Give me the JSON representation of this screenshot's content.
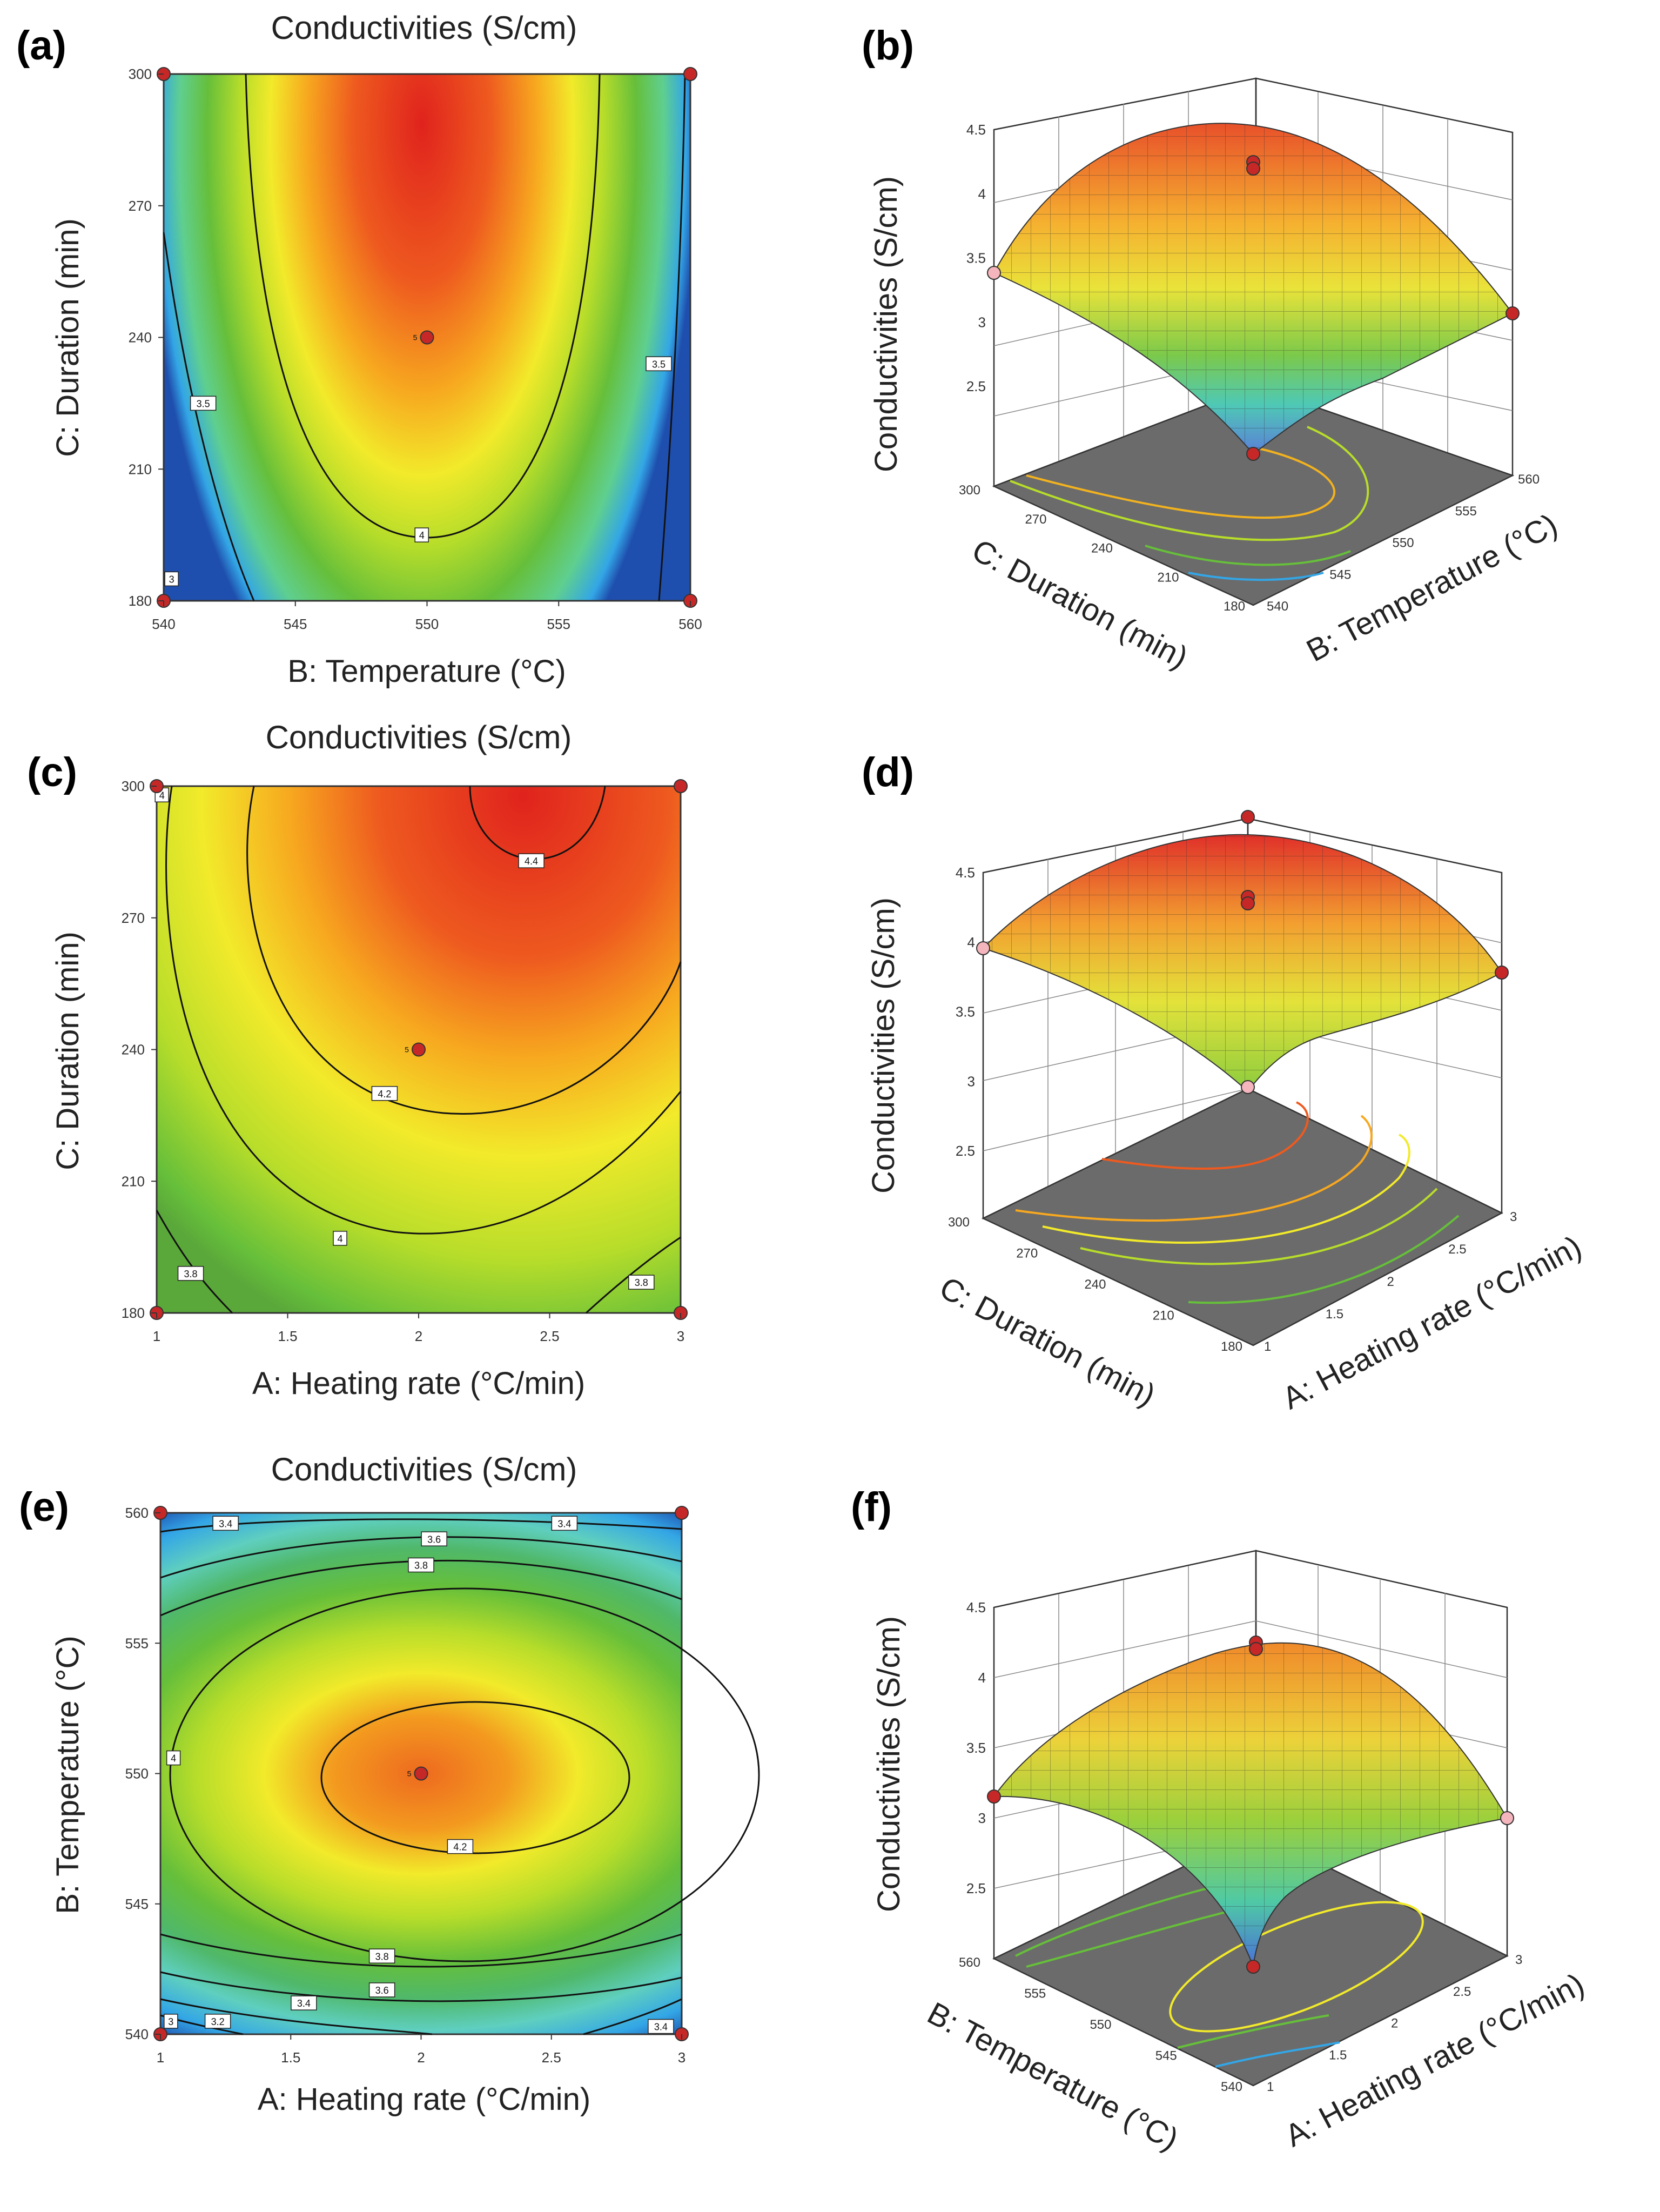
{
  "colors": {
    "scale": [
      "#1f4fae",
      "#33a6e6",
      "#5fcf8f",
      "#66bf3a",
      "#b7dd2a",
      "#f2ea2a",
      "#f7a81f",
      "#ee5a1f",
      "#e0231d"
    ],
    "floor": "#6b6b6b",
    "design_point": "#c62828",
    "design_point_light": "#f4b6bc",
    "contour": "#111111"
  },
  "chart_data": [
    {
      "type": "contour",
      "panel_label": "(a)",
      "title": "Conductivities (S/cm)",
      "xlabel": "B: Temperature (°C)",
      "ylabel": "C: Duration (min)",
      "x_ticks": [
        "540",
        "545",
        "550",
        "555",
        "560"
      ],
      "y_ticks": [
        "180",
        "210",
        "240",
        "270",
        "300"
      ],
      "xlim": [
        540,
        560
      ],
      "ylim": [
        180,
        300
      ],
      "contour_labels": [
        {
          "text": "3",
          "x": 540.3,
          "y": 185
        },
        {
          "text": "3.5",
          "x": 541.5,
          "y": 225
        },
        {
          "text": "3.5",
          "x": 558.8,
          "y": 234
        },
        {
          "text": "4",
          "x": 549.8,
          "y": 195
        }
      ],
      "center_label": "5",
      "design_points": [
        {
          "x": 540,
          "y": 180
        },
        {
          "x": 560,
          "y": 180
        },
        {
          "x": 540,
          "y": 300
        },
        {
          "x": 560,
          "y": 300
        },
        {
          "x": 550,
          "y": 240
        }
      ]
    },
    {
      "type": "surface",
      "panel_label": "(b)",
      "zlabel": "Conductivities (S/cm)",
      "z_ticks": [
        "2.5",
        "3",
        "3.5",
        "4",
        "4.5"
      ],
      "xlabel": "C: Duration (min)",
      "x_ticks": [
        "300",
        "270",
        "240",
        "210",
        "180"
      ],
      "ylabel": "B: Temperature (°C)",
      "y_ticks": [
        "540",
        "545",
        "550",
        "555",
        "560"
      ]
    },
    {
      "type": "contour",
      "panel_label": "(c)",
      "title": "Conductivities (S/cm)",
      "xlabel": "A: Heating rate (°C/min)",
      "ylabel": "C: Duration (min)",
      "x_ticks": [
        "1",
        "1.5",
        "2",
        "2.5",
        "3"
      ],
      "y_ticks": [
        "180",
        "210",
        "240",
        "270",
        "300"
      ],
      "xlim": [
        1,
        3
      ],
      "ylim": [
        180,
        300
      ],
      "contour_labels": [
        {
          "text": "4",
          "x": 1.02,
          "y": 298
        },
        {
          "text": "4.4",
          "x": 2.43,
          "y": 283
        },
        {
          "text": "4.2",
          "x": 1.87,
          "y": 230
        },
        {
          "text": "4",
          "x": 1.7,
          "y": 197
        },
        {
          "text": "3.8",
          "x": 1.13,
          "y": 189
        },
        {
          "text": "3.8",
          "x": 2.85,
          "y": 187
        }
      ],
      "center_label": "5",
      "design_points": [
        {
          "x": 1,
          "y": 180
        },
        {
          "x": 3,
          "y": 180
        },
        {
          "x": 1,
          "y": 300
        },
        {
          "x": 3,
          "y": 300
        },
        {
          "x": 2,
          "y": 240
        }
      ]
    },
    {
      "type": "surface",
      "panel_label": "(d)",
      "zlabel": "Conductivities (S/cm)",
      "z_ticks": [
        "2.5",
        "3",
        "3.5",
        "4",
        "4.5"
      ],
      "xlabel": "C: Duration (min)",
      "x_ticks": [
        "300",
        "270",
        "240",
        "210",
        "180"
      ],
      "ylabel": "A: Heating rate (°C/min)",
      "y_ticks": [
        "1",
        "1.5",
        "2",
        "2.5",
        "3"
      ]
    },
    {
      "type": "contour",
      "panel_label": "(e)",
      "title": "Conductivities (S/cm)",
      "xlabel": "A: Heating rate (°C/min)",
      "ylabel": "B: Temperature (°C)",
      "x_ticks": [
        "1",
        "1.5",
        "2",
        "2.5",
        "3"
      ],
      "y_ticks": [
        "540",
        "545",
        "550",
        "555",
        "560"
      ],
      "xlim": [
        1,
        3
      ],
      "ylim": [
        540,
        560
      ],
      "contour_labels": [
        {
          "text": "3.4",
          "x": 1.25,
          "y": 559.6
        },
        {
          "text": "3.4",
          "x": 2.55,
          "y": 559.6
        },
        {
          "text": "3.6",
          "x": 2.05,
          "y": 559.0
        },
        {
          "text": "3.8",
          "x": 2.0,
          "y": 558.0
        },
        {
          "text": "4",
          "x": 1.05,
          "y": 550.6
        },
        {
          "text": "4.2",
          "x": 2.15,
          "y": 547.2
        },
        {
          "text": "3.8",
          "x": 1.85,
          "y": 543.0
        },
        {
          "text": "3.6",
          "x": 1.85,
          "y": 541.7
        },
        {
          "text": "3.4",
          "x": 1.55,
          "y": 541.2
        },
        {
          "text": "3.2",
          "x": 1.22,
          "y": 540.5
        },
        {
          "text": "3",
          "x": 1.04,
          "y": 540.5
        },
        {
          "text": "3.4",
          "x": 2.92,
          "y": 540.3
        }
      ],
      "center_label": "5",
      "design_points": [
        {
          "x": 1,
          "y": 540
        },
        {
          "x": 3,
          "y": 540
        },
        {
          "x": 1,
          "y": 560
        },
        {
          "x": 3,
          "y": 560
        },
        {
          "x": 2,
          "y": 550
        }
      ]
    },
    {
      "type": "surface",
      "panel_label": "(f)",
      "zlabel": "Conductivities (S/cm)",
      "z_ticks": [
        "2.5",
        "3",
        "3.5",
        "4",
        "4.5"
      ],
      "xlabel": "B: Temperature (°C)",
      "x_ticks": [
        "560",
        "555",
        "550",
        "545",
        "540"
      ],
      "ylabel": "A: Heating rate (°C/min)",
      "y_ticks": [
        "1",
        "1.5",
        "2",
        "2.5",
        "3"
      ]
    }
  ]
}
